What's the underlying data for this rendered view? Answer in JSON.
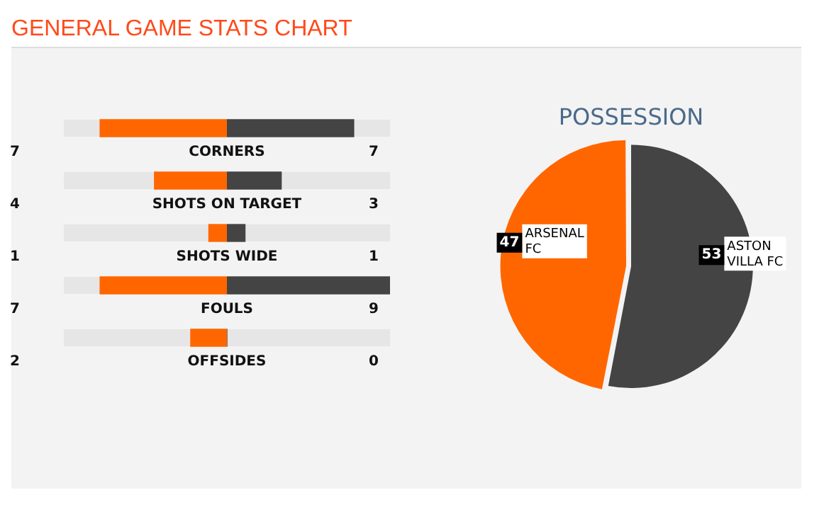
{
  "chart_data": [
    {
      "type": "bar",
      "title": "GENERAL GAME STATS CHART",
      "orientation": "horizontal",
      "categories": [
        "CORNERS",
        "SHOTS ON TARGET",
        "SHOTS WIDE",
        "FOULS",
        "OFFSIDES"
      ],
      "series": [
        {
          "color": "#ff6600",
          "values": [
            7,
            4,
            1,
            7,
            2
          ]
        }
      ],
      "xlim": [
        9,
        0
      ],
      "tick_labels": "y",
      "legend": false,
      "data_labels": true
    },
    {
      "type": "bar",
      "orientation": "horizontal",
      "categories": [
        null,
        null,
        null,
        null,
        null
      ],
      "series": [
        {
          "color": "#444444",
          "values": [
            7,
            3,
            1,
            9,
            0
          ]
        }
      ],
      "xlim": [
        0,
        9
      ],
      "tick_labels": false,
      "legend": false,
      "data_labels": true
    },
    {
      "type": "pie",
      "title": "POSSESSION",
      "categories": [
        "ARSENAL FC",
        "ASTON VILLA FC"
      ],
      "values": [
        47,
        53
      ],
      "colors": [
        "#ff6600",
        "#444444"
      ],
      "legend": false,
      "data_labels": true
    }
  ]
}
